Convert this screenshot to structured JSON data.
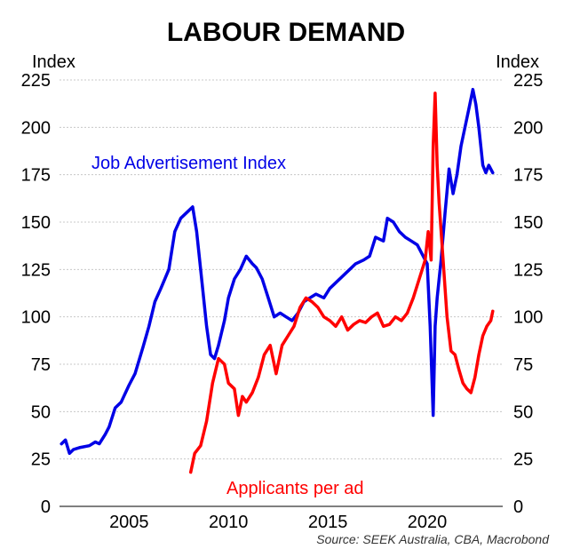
{
  "chart_data": {
    "type": "line",
    "title": "LABOUR DEMAND",
    "ylabel_left": "Index",
    "ylabel_right": "Index",
    "ylim": [
      0,
      225
    ],
    "yticks": [
      0,
      25,
      50,
      75,
      100,
      125,
      150,
      175,
      200,
      225
    ],
    "xlim": [
      2001.5,
      2023.8
    ],
    "xticks": [
      2005,
      2010,
      2015,
      2020
    ],
    "grid": true,
    "source": "Source: SEEK Australia, CBA, Macrobond",
    "series": [
      {
        "name": "Job Advertisement Index",
        "color": "#0000e6",
        "x": [
          2001.6,
          2001.8,
          2002.0,
          2002.2,
          2002.5,
          2003.0,
          2003.3,
          2003.5,
          2003.8,
          2004.0,
          2004.3,
          2004.6,
          2005.0,
          2005.3,
          2005.7,
          2006.0,
          2006.3,
          2006.6,
          2007.0,
          2007.3,
          2007.6,
          2007.9,
          2008.2,
          2008.4,
          2008.6,
          2008.9,
          2009.1,
          2009.3,
          2009.5,
          2009.8,
          2010.0,
          2010.3,
          2010.6,
          2010.9,
          2011.2,
          2011.4,
          2011.7,
          2012.0,
          2012.3,
          2012.6,
          2012.9,
          2013.2,
          2013.5,
          2013.8,
          2014.1,
          2014.4,
          2014.8,
          2015.1,
          2015.4,
          2015.8,
          2016.1,
          2016.4,
          2016.8,
          2017.1,
          2017.4,
          2017.8,
          2018.0,
          2018.3,
          2018.6,
          2018.9,
          2019.2,
          2019.5,
          2019.8,
          2020.0,
          2020.15,
          2020.3,
          2020.4,
          2020.5,
          2020.7,
          2020.9,
          2021.1,
          2021.3,
          2021.5,
          2021.7,
          2021.9,
          2022.1,
          2022.3,
          2022.45,
          2022.6,
          2022.8,
          2022.95,
          2023.1,
          2023.3
        ],
        "values": [
          33,
          35,
          28,
          30,
          31,
          32,
          34,
          33,
          38,
          42,
          52,
          55,
          64,
          70,
          84,
          95,
          108,
          115,
          125,
          145,
          152,
          155,
          158,
          145,
          125,
          95,
          80,
          78,
          85,
          98,
          110,
          120,
          125,
          132,
          128,
          126,
          120,
          110,
          100,
          102,
          100,
          98,
          102,
          108,
          110,
          112,
          110,
          115,
          118,
          122,
          125,
          128,
          130,
          132,
          142,
          140,
          152,
          150,
          145,
          142,
          140,
          138,
          132,
          128,
          95,
          48,
          95,
          110,
          130,
          155,
          178,
          165,
          175,
          190,
          200,
          210,
          220,
          212,
          200,
          180,
          176,
          180,
          176
        ]
      },
      {
        "name": "Applicants per ad",
        "color": "#ff0000",
        "x": [
          2008.1,
          2008.3,
          2008.6,
          2008.9,
          2009.2,
          2009.5,
          2009.8,
          2010.0,
          2010.3,
          2010.5,
          2010.7,
          2010.9,
          2011.2,
          2011.5,
          2011.8,
          2012.1,
          2012.4,
          2012.7,
          2013.0,
          2013.3,
          2013.6,
          2013.9,
          2014.2,
          2014.5,
          2014.8,
          2015.1,
          2015.4,
          2015.7,
          2016.0,
          2016.3,
          2016.6,
          2016.9,
          2017.2,
          2017.5,
          2017.8,
          2018.1,
          2018.4,
          2018.7,
          2019.0,
          2019.3,
          2019.6,
          2019.9,
          2020.05,
          2020.2,
          2020.3,
          2020.4,
          2020.5,
          2020.6,
          2020.8,
          2021.0,
          2021.2,
          2021.4,
          2021.6,
          2021.8,
          2022.0,
          2022.2,
          2022.4,
          2022.6,
          2022.8,
          2023.0,
          2023.2,
          2023.3
        ],
        "values": [
          18,
          28,
          32,
          45,
          65,
          78,
          75,
          65,
          62,
          48,
          58,
          55,
          60,
          68,
          80,
          85,
          70,
          85,
          90,
          95,
          105,
          110,
          108,
          105,
          100,
          98,
          95,
          100,
          93,
          96,
          98,
          97,
          100,
          102,
          95,
          96,
          100,
          98,
          102,
          110,
          120,
          130,
          145,
          130,
          190,
          218,
          180,
          160,
          130,
          100,
          82,
          80,
          72,
          65,
          62,
          60,
          68,
          80,
          90,
          95,
          98,
          103
        ]
      }
    ],
    "annotations": [
      {
        "text": "Job Advertisement Index",
        "color": "#0000e6"
      },
      {
        "text": "Applicants per ad",
        "color": "#ff0000"
      }
    ]
  }
}
